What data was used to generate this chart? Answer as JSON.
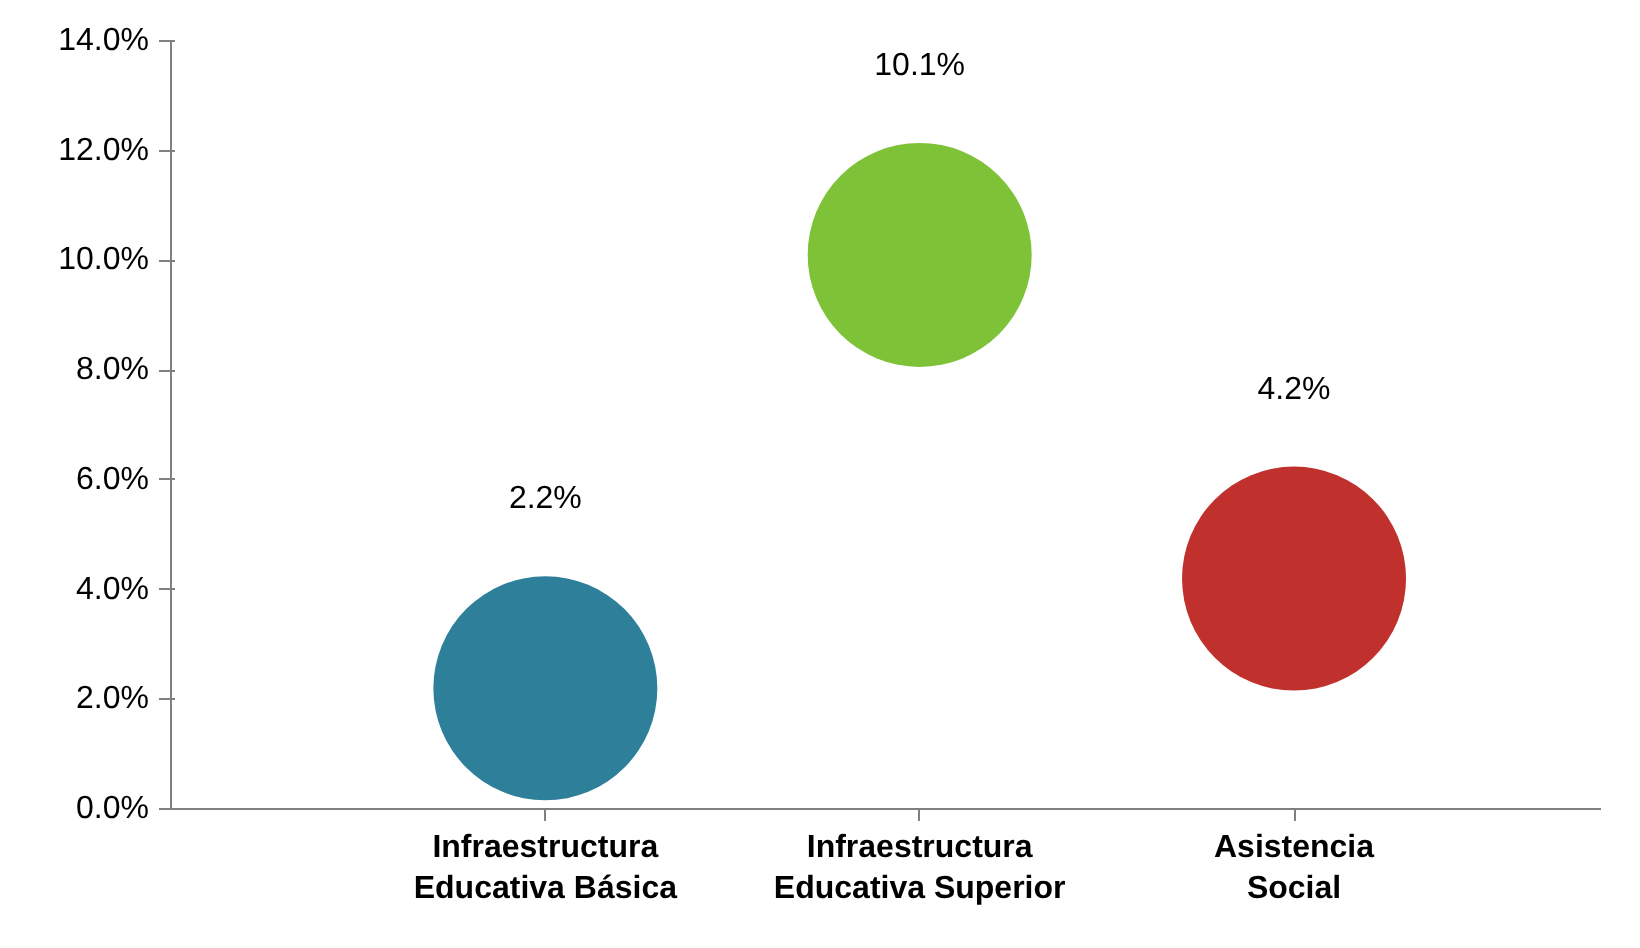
{
  "chart_data": {
    "type": "bubble",
    "categories": [
      "Infraestructura\nEducativa Básica",
      "Infraestructura\nEducativa Superior",
      "Asistencia\nSocial"
    ],
    "values": [
      2.2,
      10.1,
      4.2
    ],
    "sizes": [
      1,
      1,
      1
    ],
    "colors": [
      "#2e7f9a",
      "#7dc237",
      "#c0302c"
    ],
    "value_labels": [
      "2.2%",
      "10.1%",
      "4.2%"
    ],
    "ylim": [
      0,
      14
    ],
    "yticks": [
      {
        "value": 0,
        "label": "0.0%"
      },
      {
        "value": 2,
        "label": "2.0%"
      },
      {
        "value": 4,
        "label": "4.0%"
      },
      {
        "value": 6,
        "label": "6.0%"
      },
      {
        "value": 8,
        "label": "8.0%"
      },
      {
        "value": 10,
        "label": "10.0%"
      },
      {
        "value": 12,
        "label": "12.0%"
      },
      {
        "value": 14,
        "label": "14.0%"
      }
    ],
    "grid": false
  }
}
